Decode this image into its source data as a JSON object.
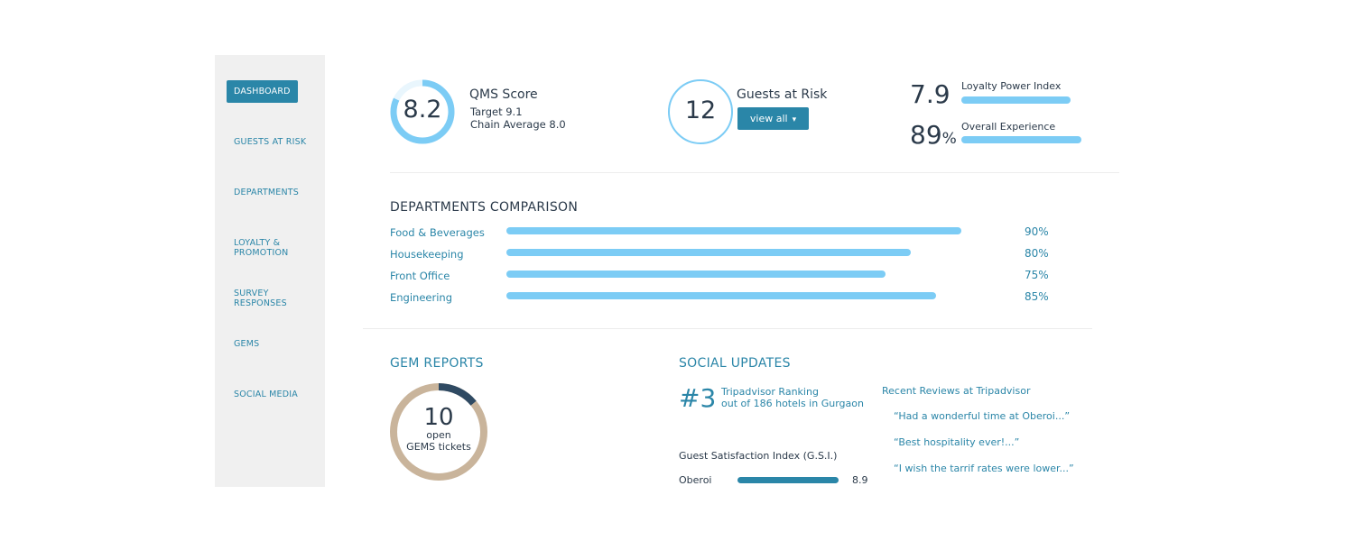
{
  "sidebar": {
    "items": [
      {
        "label": "DASHBOARD",
        "active": true
      },
      {
        "label": "GUESTS AT RISK"
      },
      {
        "label": "DEPARTMENTS"
      },
      {
        "label": "LOYALTY &\nPROMOTION"
      },
      {
        "label": "SURVEY\nRESPONSES"
      },
      {
        "label": "GEMS"
      },
      {
        "label": "SOCIAL MEDIA"
      }
    ]
  },
  "qms": {
    "value": "8.2",
    "title": "QMS Score",
    "target": "Target 9.1",
    "chain_average": "Chain Average 8.0",
    "ring_fraction": 0.82
  },
  "guests_at_risk": {
    "value": "12",
    "title": "Guests at Risk",
    "button_label": "view all"
  },
  "loyalty": {
    "value": "7.9",
    "label": "Loyalty Power Index",
    "fill_fraction": 1.0
  },
  "overall": {
    "value": "89",
    "unit": "%",
    "label": "Overall Experience",
    "fill_fraction": 1.0
  },
  "departments": {
    "title": "DEPARTMENTS COMPARISON",
    "rows": [
      {
        "name": "Food & Beverages",
        "percent_label": "90%",
        "value": 90
      },
      {
        "name": "Housekeeping",
        "percent_label": "80%",
        "value": 80
      },
      {
        "name": "Front Office",
        "percent_label": "75%",
        "value": 75
      },
      {
        "name": "Engineering",
        "percent_label": "85%",
        "value": 85
      }
    ]
  },
  "gem_reports": {
    "title": "GEM REPORTS",
    "count": "10",
    "line1": "open",
    "line2": "GEMS tickets",
    "open_fraction": 0.14
  },
  "social": {
    "title": "SOCIAL UPDATES",
    "rank": "#3",
    "rank_line1": "Tripadvisor Ranking",
    "rank_line2": "out of 186 hotels in Gurgaon",
    "gsi_title": "Guest Satisfaction Index (G.S.I.)",
    "gsi_name": "Oberoi",
    "gsi_value": "8.9",
    "reviews_title": "Recent Reviews at Tripadvisor",
    "reviews": [
      "“Had a wonderful time at Oberoi...”",
      "“Best hospitality ever!...”",
      "“I wish the tarrif rates were lower...”"
    ]
  },
  "colors": {
    "accent": "#2a86a8",
    "light_blue": "#7cccf5",
    "text_dark": "#2b3a4a",
    "sidebar_bg": "#f0f0f0",
    "gem_track": "#c9b49b",
    "gem_open": "#2f4a63"
  }
}
